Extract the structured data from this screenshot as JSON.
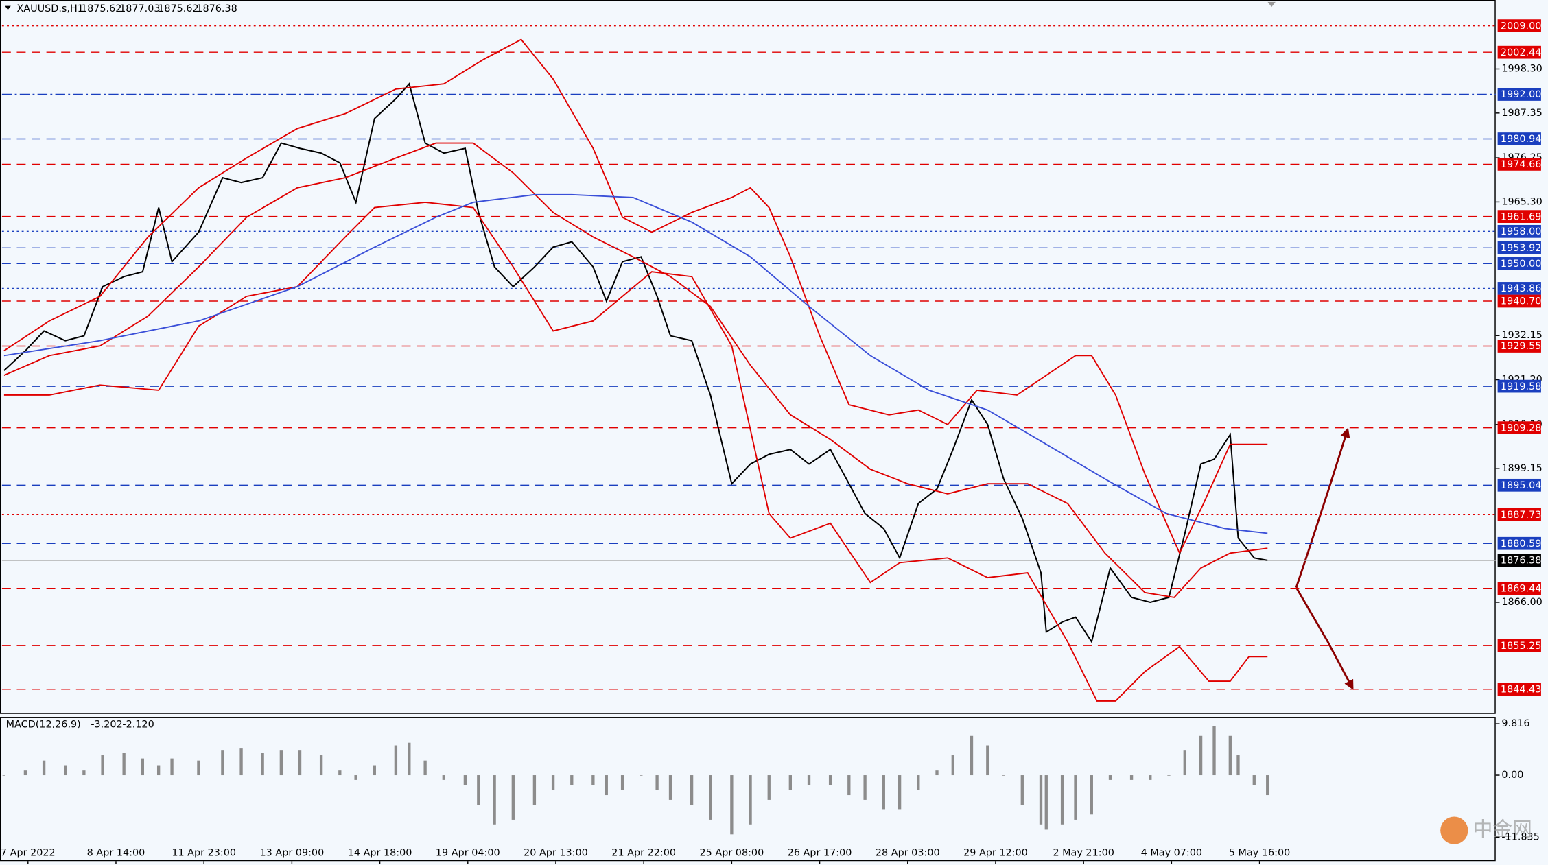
{
  "chart_data": [
    {
      "type": "line",
      "title": "XAUUSD.s,H1",
      "quote": [
        1875.62,
        1877.03,
        1875.62,
        1876.38
      ],
      "watermark": "中金网",
      "xlim": [
        -1.5,
        559.6
      ],
      "ylim": [
        1838.3,
        2015.4
      ],
      "xticks": [
        {
          "value": 9,
          "label": "7 Apr 2022"
        },
        {
          "value": 42,
          "label": "8 Apr 14:00"
        },
        {
          "value": 75,
          "label": "11 Apr 23:00"
        },
        {
          "value": 108,
          "label": "13 Apr 09:00"
        },
        {
          "value": 141,
          "label": "14 Apr 18:00"
        },
        {
          "value": 174,
          "label": "19 Apr 04:00"
        },
        {
          "value": 207,
          "label": "20 Apr 13:00"
        },
        {
          "value": 240,
          "label": "21 Apr 22:00"
        },
        {
          "value": 273,
          "label": "25 Apr 08:00"
        },
        {
          "value": 306,
          "label": "26 Apr 17:00"
        },
        {
          "value": 339,
          "label": "28 Apr 03:00"
        },
        {
          "value": 372,
          "label": "29 Apr 12:00"
        },
        {
          "value": 405,
          "label": "2 May 21:00"
        },
        {
          "value": 438,
          "label": "4 May 07:00"
        },
        {
          "value": 471,
          "label": "5 May 16:00"
        }
      ],
      "yticks": [
        {
          "value": 1998.3,
          "label": "1998.30"
        },
        {
          "value": 1987.35,
          "label": "1987.35"
        },
        {
          "value": 1976.25,
          "label": "1976.25"
        },
        {
          "value": 1965.3,
          "label": "1965.30"
        },
        {
          "value": 1932.15,
          "label": "1932.15"
        },
        {
          "value": 1921.2,
          "label": "1921.20"
        },
        {
          "value": 1910.1,
          "label": "1910.10"
        },
        {
          "value": 1899.15,
          "label": "1899.15"
        },
        {
          "value": 1866,
          "label": "1866.00"
        }
      ],
      "levels": [
        {
          "value": 2009,
          "label": "2009.00",
          "color": "#e00000",
          "style": "dot"
        },
        {
          "value": 2002.44,
          "label": "2002.44",
          "color": "#e00000",
          "style": "dash"
        },
        {
          "value": 1992,
          "label": "1992.00",
          "color": "#1a3fbf",
          "style": "dashdot"
        },
        {
          "value": 1980.94,
          "label": "1980.94",
          "color": "#1a3fbf",
          "style": "dash"
        },
        {
          "value": 1974.66,
          "label": "1974.66",
          "color": "#e00000",
          "style": "dash"
        },
        {
          "value": 1961.69,
          "label": "1961.69",
          "color": "#e00000",
          "style": "dash"
        },
        {
          "value": 1958,
          "label": "1958.00",
          "color": "#1a3fbf",
          "style": "dot"
        },
        {
          "value": 1953.92,
          "label": "1953.92",
          "color": "#1a3fbf",
          "style": "dash"
        },
        {
          "value": 1950,
          "label": "1950.00",
          "color": "#1a3fbf",
          "style": "dash"
        },
        {
          "value": 1943.86,
          "label": "1943.86",
          "color": "#1a3fbf",
          "style": "dot"
        },
        {
          "value": 1940.7,
          "label": "1940.70",
          "color": "#e00000",
          "style": "dash"
        },
        {
          "value": 1929.55,
          "label": "1929.55",
          "color": "#e00000",
          "style": "dash"
        },
        {
          "value": 1919.58,
          "label": "1919.58",
          "color": "#1a3fbf",
          "style": "dash"
        },
        {
          "value": 1909.28,
          "label": "1909.28",
          "color": "#e00000",
          "style": "dash"
        },
        {
          "value": 1895.04,
          "label": "1895.04",
          "color": "#1a3fbf",
          "style": "dash"
        },
        {
          "value": 1887.73,
          "label": "1887.73",
          "color": "#e00000",
          "style": "dot"
        },
        {
          "value": 1880.59,
          "label": "1880.59",
          "color": "#1a3fbf",
          "style": "dash"
        },
        {
          "value": 1876.38,
          "label": "1876.38",
          "color": "#000000",
          "style": "solid"
        },
        {
          "value": 1869.44,
          "label": "1869.44",
          "color": "#e00000",
          "style": "dash"
        },
        {
          "value": 1855.25,
          "label": "1855.25",
          "color": "#e00000",
          "style": "dash"
        },
        {
          "value": 1844.43,
          "label": "1844.43",
          "color": "#e00000",
          "style": "dash"
        }
      ],
      "series": [
        {
          "color": "#000000",
          "x": [
            0,
            8,
            15,
            23,
            30,
            37,
            45,
            52,
            58,
            63,
            73,
            82,
            89,
            97,
            104,
            111,
            119,
            126,
            132,
            139,
            147,
            152,
            158,
            165,
            173,
            178,
            184,
            191,
            199,
            206,
            213,
            221,
            226,
            232,
            239,
            245,
            250,
            258,
            265,
            273,
            280,
            287,
            295,
            302,
            310,
            317,
            323,
            330,
            336,
            343,
            350,
            356,
            363,
            369,
            375,
            382,
            389,
            391,
            397,
            402,
            408,
            415,
            423,
            430,
            437,
            443,
            449,
            454,
            460,
            463,
            469,
            474
          ],
          "values": [
            1923.5,
            1928.4,
            1933.3,
            1930.9,
            1932.1,
            1944.3,
            1946.8,
            1948,
            1963.9,
            1950.5,
            1957.8,
            1971.3,
            1970.1,
            1971.3,
            1979.9,
            1978.6,
            1977.4,
            1975,
            1965.2,
            1986,
            1990.9,
            1994.6,
            1979.9,
            1977.4,
            1978.6,
            1962.7,
            1949.2,
            1944.3,
            1949.2,
            1954.1,
            1955.4,
            1949.2,
            1940.7,
            1950.5,
            1951.7,
            1941.9,
            1932.1,
            1930.9,
            1917.4,
            1895.4,
            1900.3,
            1902.7,
            1903.9,
            1900.3,
            1903.9,
            1895.4,
            1888,
            1884.3,
            1877,
            1890.5,
            1894.1,
            1903.9,
            1916.2,
            1910.1,
            1896.6,
            1886.8,
            1873.3,
            1858.6,
            1861.1,
            1862.3,
            1856.2,
            1874.5,
            1867.2,
            1866,
            1867.2,
            1883.1,
            1900.3,
            1901.5,
            1907.6,
            1881.9,
            1877,
            1876.4
          ]
        },
        {
          "color": "#e00000",
          "x": [
            0,
            17,
            36,
            54,
            73,
            91,
            110,
            128,
            147,
            165,
            180,
            194,
            206,
            221,
            232,
            243,
            258,
            273,
            280,
            287,
            295,
            306,
            317,
            332,
            343,
            354,
            365,
            380,
            391,
            402,
            408,
            417,
            428,
            441,
            450,
            460,
            474
          ],
          "values": [
            1928.4,
            1935.8,
            1941.9,
            1956.6,
            1968.8,
            1976.2,
            1983.5,
            1987.2,
            1993.3,
            1994.6,
            2000.7,
            2005.6,
            1995.8,
            1978.6,
            1961.5,
            1957.8,
            1962.7,
            1966.4,
            1968.8,
            1963.9,
            1951.7,
            1932.1,
            1915,
            1912.5,
            1913.7,
            1910.1,
            1918.6,
            1917.4,
            1922.3,
            1927.2,
            1927.2,
            1917.4,
            1897.8,
            1878.2,
            1890.5,
            1905.2,
            1905.2
          ]
        },
        {
          "color": "#e00000",
          "x": [
            0,
            17,
            36,
            54,
            73,
            91,
            110,
            128,
            147,
            162,
            176,
            191,
            206,
            221,
            236,
            250,
            265,
            280,
            295,
            310,
            325,
            339,
            354,
            369,
            384,
            399,
            413,
            428,
            439,
            449,
            460,
            474
          ],
          "values": [
            1922.3,
            1927.2,
            1929.6,
            1937,
            1949.2,
            1961.5,
            1968.8,
            1971.3,
            1976.2,
            1979.9,
            1979.9,
            1972.5,
            1962.7,
            1956.6,
            1951.7,
            1946.8,
            1939.4,
            1924.8,
            1912.5,
            1906.4,
            1899,
            1895.4,
            1892.9,
            1895.4,
            1895.4,
            1890.5,
            1878.2,
            1868.4,
            1867.2,
            1874.5,
            1878.2,
            1879.4
          ]
        },
        {
          "color": "#e00000",
          "x": [
            0,
            17,
            36,
            58,
            73,
            91,
            110,
            128,
            139,
            158,
            176,
            191,
            206,
            221,
            232,
            243,
            258,
            273,
            287,
            295,
            310,
            325,
            336,
            354,
            369,
            384,
            399,
            410,
            417,
            428,
            441,
            452,
            460,
            467,
            474
          ],
          "values": [
            1917.4,
            1917.4,
            1919.9,
            1918.6,
            1934.5,
            1941.9,
            1944.3,
            1956.6,
            1963.9,
            1965.2,
            1963.9,
            1949.2,
            1933.3,
            1935.8,
            1941.9,
            1948,
            1946.8,
            1929.6,
            1888,
            1881.9,
            1885.6,
            1870.9,
            1875.8,
            1877,
            1872.1,
            1873.3,
            1856.2,
            1841.5,
            1841.5,
            1848.8,
            1855,
            1846.4,
            1846.4,
            1852.5,
            1852.5
          ]
        },
        {
          "color": "#3a4fd8",
          "x": [
            0,
            36,
            73,
            110,
            139,
            162,
            176,
            199,
            213,
            236,
            258,
            280,
            302,
            325,
            347,
            369,
            391,
            413,
            436,
            458,
            474
          ],
          "values": [
            1927.2,
            1930.9,
            1935.8,
            1944.3,
            1954.1,
            1961.5,
            1965.2,
            1967.1,
            1967.1,
            1966.4,
            1960.3,
            1951.7,
            1939.4,
            1927.2,
            1918.6,
            1913.7,
            1905.2,
            1896.6,
            1888,
            1884.3,
            1883.1
          ]
        }
      ]
    },
    {
      "type": "bar",
      "title": "MACD(12,26,9)",
      "readings": [
        -3.202,
        {
          "value": -2.12,
          "label": "-2.120"
        }
      ],
      "color": "#8c8c8c",
      "ylim": [
        -16.4,
        10.94
      ],
      "yticks": [
        9.816,
        {
          "value": 0,
          "label": "0.00"
        },
        -11.835
      ],
      "x": [
        0,
        8,
        15,
        23,
        30,
        37,
        45,
        52,
        58,
        63,
        73,
        82,
        89,
        97,
        104,
        111,
        119,
        126,
        132,
        139,
        147,
        152,
        158,
        165,
        173,
        178,
        184,
        191,
        199,
        206,
        213,
        221,
        226,
        232,
        239,
        245,
        250,
        258,
        265,
        273,
        280,
        287,
        295,
        302,
        310,
        317,
        323,
        330,
        336,
        343,
        350,
        356,
        363,
        369,
        375,
        382,
        389,
        391,
        397,
        402,
        408,
        415,
        423,
        430,
        437,
        443,
        449,
        454,
        460,
        463,
        469,
        474
      ],
      "values": [
        0,
        0.9,
        2.8,
        1.9,
        0.9,
        3.8,
        4.3,
        3.2,
        1.9,
        3.2,
        2.8,
        4.7,
        5.1,
        4.3,
        4.7,
        4.7,
        3.8,
        0.9,
        -0.9,
        1.9,
        5.7,
        6.2,
        2.8,
        -0.9,
        -1.9,
        -5.7,
        -9.4,
        -8.5,
        -5.7,
        -2.8,
        -1.9,
        -1.9,
        -3.8,
        -2.8,
        0,
        -2.8,
        -4.7,
        -5.7,
        -8.5,
        -11.3,
        -9.4,
        -4.7,
        -2.8,
        -1.9,
        -1.9,
        -3.8,
        -4.7,
        -6.6,
        -6.6,
        -2.8,
        0.9,
        3.8,
        7.5,
        5.7,
        0,
        -5.7,
        -9.4,
        -10.4,
        -9.4,
        -8.5,
        -7.5,
        -0.9,
        -0.9,
        -0.9,
        0,
        4.7,
        7.5,
        9.4,
        7.5,
        3.8,
        -1.9,
        -3.8
      ]
    }
  ]
}
